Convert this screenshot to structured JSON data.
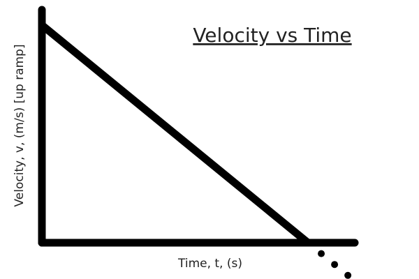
{
  "chart_data": {
    "type": "line",
    "title": "Velocity vs Time",
    "xlabel": "Time, t, (s)",
    "ylabel": "Velocity, v, (m/s) [up ramp]",
    "series": [
      {
        "values": [
          {
            "x": 0,
            "y": 1
          },
          {
            "x": 1,
            "y": 0
          }
        ]
      }
    ],
    "continuation_points": [
      {
        "x": 1.05,
        "y": -0.05
      },
      {
        "x": 1.1,
        "y": -0.1
      },
      {
        "x": 1.15,
        "y": -0.15
      }
    ],
    "grid": false,
    "legend": "none",
    "colors": {
      "line": "#000000",
      "axis": "#000000",
      "text": "#222222",
      "background": "#ffffff"
    }
  }
}
